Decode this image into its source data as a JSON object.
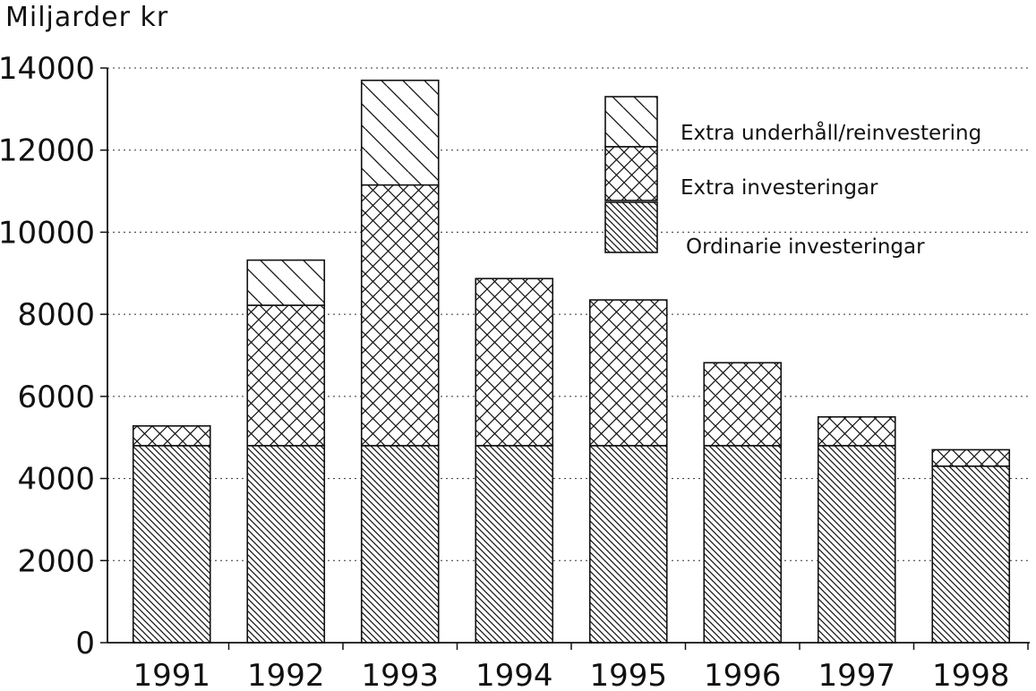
{
  "chart_data": {
    "type": "bar",
    "stacked": true,
    "title": "",
    "ylabel": "Miljarder kr",
    "xlabel": "",
    "ylim": [
      0,
      14000
    ],
    "yticks": [
      "0",
      "2000",
      "4000",
      "6000",
      "8000",
      "10000",
      "12000",
      "14000"
    ],
    "categories": [
      "1991",
      "1992",
      "1993",
      "1994",
      "1995",
      "1996",
      "1997",
      "1998"
    ],
    "grid": "horizontal dotted",
    "legend_position": "top-right",
    "series": [
      {
        "name": "Ordinarie investeringar",
        "pattern": "dense-diagonal",
        "values": [
          4800,
          4800,
          4800,
          4800,
          4800,
          4800,
          4800,
          4300
        ]
      },
      {
        "name": "Extra investeringar",
        "pattern": "crosshatch",
        "values": [
          480,
          3420,
          6350,
          4070,
          3550,
          2020,
          700,
          400
        ]
      },
      {
        "name": "Extra underhåll/reinvestering",
        "pattern": "sparse-diagonal",
        "values": [
          0,
          1100,
          2550,
          0,
          0,
          0,
          0,
          0
        ]
      }
    ],
    "legend_order": [
      2,
      1,
      0
    ]
  }
}
